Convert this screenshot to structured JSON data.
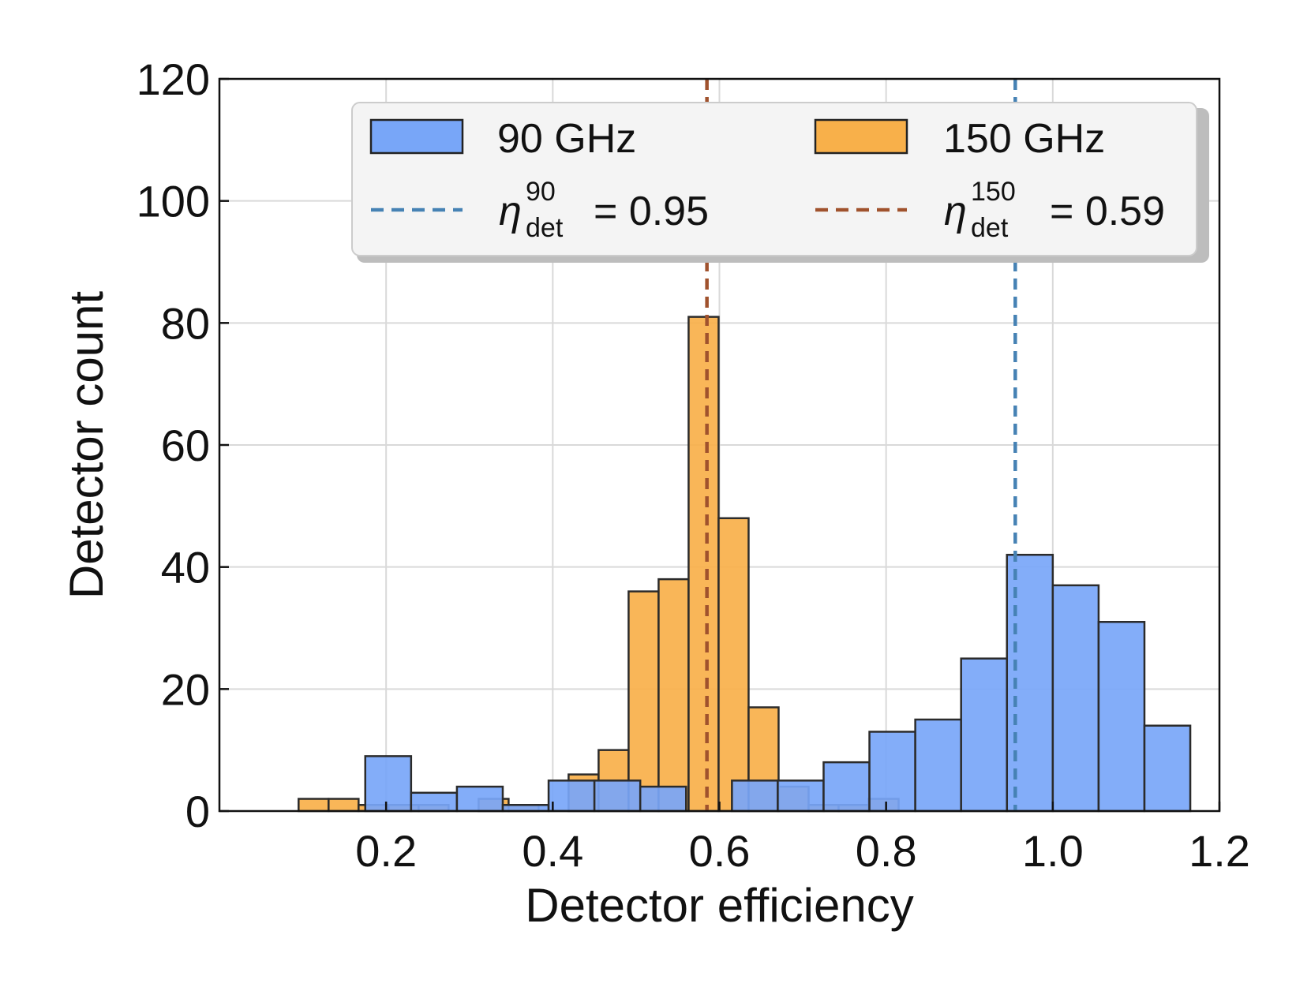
{
  "chart_data": {
    "type": "bar",
    "xlabel": "Detector efficiency",
    "ylabel": "Detector count",
    "xlim": [
      0.0,
      1.2
    ],
    "ylim": [
      0,
      120
    ],
    "x_ticks": [
      0.2,
      0.4,
      0.6,
      0.8,
      1.0,
      1.2
    ],
    "x_tick_labels": [
      "0.2",
      "0.4",
      "0.6",
      "0.8",
      "1.0",
      "1.2"
    ],
    "y_ticks": [
      0,
      20,
      40,
      60,
      80,
      100,
      120
    ],
    "y_tick_labels": [
      "0",
      "20",
      "40",
      "60",
      "80",
      "100",
      "120"
    ],
    "grid": true,
    "legend_position": "top-right",
    "series": [
      {
        "name": "90 GHz",
        "color": "#78a6f8",
        "bins": [
          {
            "x0": 0.175,
            "x1": 0.23,
            "count": 9
          },
          {
            "x0": 0.23,
            "x1": 0.285,
            "count": 3
          },
          {
            "x0": 0.285,
            "x1": 0.34,
            "count": 4
          },
          {
            "x0": 0.34,
            "x1": 0.395,
            "count": 1
          },
          {
            "x0": 0.395,
            "x1": 0.45,
            "count": 5
          },
          {
            "x0": 0.45,
            "x1": 0.505,
            "count": 5
          },
          {
            "x0": 0.505,
            "x1": 0.56,
            "count": 4
          },
          {
            "x0": 0.56,
            "x1": 0.615,
            "count": 0
          },
          {
            "x0": 0.615,
            "x1": 0.67,
            "count": 5
          },
          {
            "x0": 0.67,
            "x1": 0.725,
            "count": 5
          },
          {
            "x0": 0.725,
            "x1": 0.78,
            "count": 8
          },
          {
            "x0": 0.78,
            "x1": 0.835,
            "count": 13
          },
          {
            "x0": 0.835,
            "x1": 0.89,
            "count": 15
          },
          {
            "x0": 0.89,
            "x1": 0.945,
            "count": 25
          },
          {
            "x0": 0.945,
            "x1": 1.0,
            "count": 42
          },
          {
            "x0": 1.0,
            "x1": 1.055,
            "count": 37
          },
          {
            "x0": 1.055,
            "x1": 1.11,
            "count": 31
          },
          {
            "x0": 1.11,
            "x1": 1.165,
            "count": 14
          }
        ]
      },
      {
        "name": "150 GHz",
        "color": "#f8b04a",
        "bins": [
          {
            "x0": 0.095,
            "x1": 0.131,
            "count": 2
          },
          {
            "x0": 0.131,
            "x1": 0.167,
            "count": 2
          },
          {
            "x0": 0.167,
            "x1": 0.203,
            "count": 1
          },
          {
            "x0": 0.203,
            "x1": 0.239,
            "count": 1
          },
          {
            "x0": 0.239,
            "x1": 0.275,
            "count": 1
          },
          {
            "x0": 0.275,
            "x1": 0.311,
            "count": 0
          },
          {
            "x0": 0.311,
            "x1": 0.347,
            "count": 2
          },
          {
            "x0": 0.347,
            "x1": 0.383,
            "count": 1
          },
          {
            "x0": 0.383,
            "x1": 0.419,
            "count": 0
          },
          {
            "x0": 0.419,
            "x1": 0.455,
            "count": 6
          },
          {
            "x0": 0.455,
            "x1": 0.491,
            "count": 10
          },
          {
            "x0": 0.491,
            "x1": 0.527,
            "count": 36
          },
          {
            "x0": 0.527,
            "x1": 0.563,
            "count": 38
          },
          {
            "x0": 0.563,
            "x1": 0.599,
            "count": 81
          },
          {
            "x0": 0.599,
            "x1": 0.635,
            "count": 48
          },
          {
            "x0": 0.635,
            "x1": 0.671,
            "count": 17
          },
          {
            "x0": 0.671,
            "x1": 0.707,
            "count": 4
          },
          {
            "x0": 0.707,
            "x1": 0.743,
            "count": 1
          },
          {
            "x0": 0.743,
            "x1": 0.779,
            "count": 1
          },
          {
            "x0": 0.779,
            "x1": 0.815,
            "count": 2
          }
        ]
      }
    ],
    "reference_lines": [
      {
        "symbol": "η",
        "sub": "det",
        "sup": "90",
        "eq": "= 0.95",
        "x": 0.955,
        "color": "#4682b4"
      },
      {
        "symbol": "η",
        "sub": "det",
        "sup": "150",
        "eq": "= 0.59",
        "x": 0.585,
        "color": "#a0522d"
      }
    ]
  }
}
